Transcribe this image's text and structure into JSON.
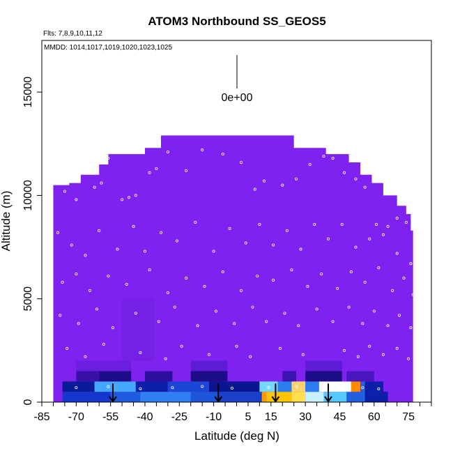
{
  "chart_data": {
    "type": "heatmap",
    "title": "ATOM3 Northbound SS_GEOS5",
    "flights_label": "Flts: 7,8,9,10,11,12",
    "mmdd_label": "MMDD: 1014,1017,1019,1020,1023,1025",
    "xlabel": "Latitude (deg N)",
    "ylabel": "Altitude (m)",
    "xlim": [
      -85,
      85
    ],
    "ylim": [
      0,
      17500
    ],
    "x_ticks": [
      "-85",
      "-70",
      "-55",
      "-40",
      "-25",
      "-10",
      "5",
      "15",
      "30",
      "45",
      "60",
      "75"
    ],
    "y_ticks": [
      "0",
      "5000",
      "10000",
      "15000"
    ],
    "colorbar_label": "0e+00",
    "background_value_color": "#7f22f0",
    "curtain_top_profile": [
      {
        "lat": -80,
        "alt": 10500
      },
      {
        "lat": -73,
        "alt": 10600
      },
      {
        "lat": -68,
        "alt": 11000
      },
      {
        "lat": -60,
        "alt": 11500
      },
      {
        "lat": -56,
        "alt": 12000
      },
      {
        "lat": -40,
        "alt": 12300
      },
      {
        "lat": -33,
        "alt": 12900
      },
      {
        "lat": 18,
        "alt": 12900
      },
      {
        "lat": 25,
        "alt": 12300
      },
      {
        "lat": 39,
        "alt": 12000
      },
      {
        "lat": 49,
        "alt": 11600
      },
      {
        "lat": 54,
        "alt": 11000
      },
      {
        "lat": 59,
        "alt": 10600
      },
      {
        "lat": 64,
        "alt": 10000
      },
      {
        "lat": 70,
        "alt": 9500
      },
      {
        "lat": 74,
        "alt": 9100
      },
      {
        "lat": 76,
        "alt": 8300
      },
      {
        "lat": 77,
        "alt": 7100
      }
    ],
    "boundary_layer_cells": [
      {
        "lat0": -76,
        "lat1": -55,
        "alt0": 0,
        "alt1": 500,
        "color": "#1536cc"
      },
      {
        "lat0": -55,
        "lat1": -42,
        "alt0": 0,
        "alt1": 500,
        "color": "#1f5be0"
      },
      {
        "lat0": -42,
        "lat1": -20,
        "alt0": 0,
        "alt1": 500,
        "color": "#2f7ff0"
      },
      {
        "lat0": -20,
        "lat1": -8,
        "alt0": 0,
        "alt1": 500,
        "color": "#1d55dd"
      },
      {
        "lat0": -8,
        "lat1": 11,
        "alt0": 0,
        "alt1": 500,
        "color": "#1a3fc8"
      },
      {
        "lat0": 11,
        "lat1": 13,
        "alt0": 0,
        "alt1": 500,
        "color": "#ff9a00"
      },
      {
        "lat0": 13,
        "lat1": 24,
        "alt0": 0,
        "alt1": 500,
        "color": "#ffc400"
      },
      {
        "lat0": 24,
        "lat1": 30,
        "alt0": 0,
        "alt1": 500,
        "color": "#ffe04a"
      },
      {
        "lat0": 30,
        "lat1": 38,
        "alt0": 0,
        "alt1": 500,
        "color": "#c9f0ff"
      },
      {
        "lat0": 38,
        "lat1": 48,
        "alt0": 0,
        "alt1": 500,
        "color": "#55c8ff"
      },
      {
        "lat0": 48,
        "lat1": 56,
        "alt0": 0,
        "alt1": 500,
        "color": "#1f5fe0"
      },
      {
        "lat0": 56,
        "lat1": 66,
        "alt0": 0,
        "alt1": 500,
        "color": "#0c1fa8"
      },
      {
        "lat0": -76,
        "lat1": -62,
        "alt0": 500,
        "alt1": 1000,
        "color": "#0a1b9a"
      },
      {
        "lat0": -62,
        "lat1": -44,
        "alt0": 500,
        "alt1": 1000,
        "color": "#43a6ff"
      },
      {
        "lat0": -44,
        "lat1": -30,
        "alt0": 500,
        "alt1": 1000,
        "color": "#0c1fa8"
      },
      {
        "lat0": -30,
        "lat1": -12,
        "alt0": 500,
        "alt1": 1000,
        "color": "#1c46d5"
      },
      {
        "lat0": -12,
        "lat1": 10,
        "alt0": 500,
        "alt1": 1000,
        "color": "#0a1590"
      },
      {
        "lat0": 10,
        "lat1": 18,
        "alt0": 500,
        "alt1": 1000,
        "color": "#74d8ff"
      },
      {
        "lat0": 18,
        "lat1": 24,
        "alt0": 500,
        "alt1": 1000,
        "color": "#2a7ef0"
      },
      {
        "lat0": 24,
        "lat1": 30,
        "alt0": 500,
        "alt1": 1000,
        "color": "#ffd36b"
      },
      {
        "lat0": 30,
        "lat1": 36,
        "alt0": 500,
        "alt1": 1000,
        "color": "#2a7ef0"
      },
      {
        "lat0": 36,
        "lat1": 50,
        "alt0": 500,
        "alt1": 1000,
        "color": "#ffffff"
      },
      {
        "lat0": 50,
        "lat1": 54,
        "alt0": 500,
        "alt1": 1000,
        "color": "#ff8a00"
      },
      {
        "lat0": 54,
        "lat1": 56,
        "alt0": 500,
        "alt1": 1000,
        "color": "#2a5de0"
      },
      {
        "lat0": 56,
        "lat1": 64,
        "alt0": 500,
        "alt1": 1000,
        "color": "#0c1fa8"
      },
      {
        "lat0": -70,
        "lat1": -60,
        "alt0": 1000,
        "alt1": 1500,
        "color": "#3a11a8"
      },
      {
        "lat0": -60,
        "lat1": -46,
        "alt0": 1000,
        "alt1": 1500,
        "color": "#1e0d8a"
      },
      {
        "lat0": -40,
        "lat1": -28,
        "alt0": 1000,
        "alt1": 1500,
        "color": "#2d0f9e"
      },
      {
        "lat0": -20,
        "lat1": -4,
        "alt0": 1000,
        "alt1": 1500,
        "color": "#1d0c88"
      },
      {
        "lat0": 20,
        "lat1": 26,
        "alt0": 1000,
        "alt1": 1500,
        "color": "#3b14b0"
      },
      {
        "lat0": 30,
        "lat1": 46,
        "alt0": 1000,
        "alt1": 1500,
        "color": "#1d0c88"
      },
      {
        "lat0": 48,
        "lat1": 60,
        "alt0": 1000,
        "alt1": 1500,
        "color": "#4a16bf"
      },
      {
        "lat0": -70,
        "lat1": -46,
        "alt0": 1500,
        "alt1": 2000,
        "color": "#6b1ee0"
      },
      {
        "lat0": -20,
        "lat1": -4,
        "alt0": 1500,
        "alt1": 2000,
        "color": "#5e1bd6"
      },
      {
        "lat0": 30,
        "lat1": 46,
        "alt0": 1500,
        "alt1": 2000,
        "color": "#5e1bd6"
      },
      {
        "lat0": -50,
        "lat1": -36,
        "alt0": 2000,
        "alt1": 5000,
        "color": "#7520e4"
      }
    ],
    "flight_track_markers_lat": [
      -54,
      -8,
      17,
      40
    ],
    "aircraft_observations": [
      {
        "lat": -75,
        "alt": 10200
      },
      {
        "lat": -70,
        "alt": 9800
      },
      {
        "lat": -62,
        "alt": 10400
      },
      {
        "lat": -59,
        "alt": 10600
      },
      {
        "lat": -56,
        "alt": 11800
      },
      {
        "lat": -50,
        "alt": 9800
      },
      {
        "lat": -47,
        "alt": 9900
      },
      {
        "lat": -44,
        "alt": 10000
      },
      {
        "lat": -38,
        "alt": 11100
      },
      {
        "lat": -35,
        "alt": 11300
      },
      {
        "lat": -30,
        "alt": 12100
      },
      {
        "lat": -22,
        "alt": 11200
      },
      {
        "lat": -15,
        "alt": 12200
      },
      {
        "lat": -6,
        "alt": 12000
      },
      {
        "lat": 2,
        "alt": 11600
      },
      {
        "lat": 8,
        "alt": 10300
      },
      {
        "lat": 12,
        "alt": 10700
      },
      {
        "lat": 20,
        "alt": 10500
      },
      {
        "lat": 26,
        "alt": 10800
      },
      {
        "lat": 32,
        "alt": 11500
      },
      {
        "lat": 38,
        "alt": 11900
      },
      {
        "lat": 42,
        "alt": 11800
      },
      {
        "lat": 47,
        "alt": 11100
      },
      {
        "lat": 52,
        "alt": 10800
      },
      {
        "lat": 56,
        "alt": 10400
      },
      {
        "lat": 61,
        "alt": 8600
      },
      {
        "lat": 66,
        "alt": 8500
      },
      {
        "lat": 70,
        "alt": 8900
      },
      {
        "lat": 74,
        "alt": 8700
      },
      {
        "lat": -78,
        "alt": 8200
      },
      {
        "lat": -72,
        "alt": 7600
      },
      {
        "lat": -66,
        "alt": 7100
      },
      {
        "lat": -60,
        "alt": 8300
      },
      {
        "lat": -52,
        "alt": 7400
      },
      {
        "lat": -45,
        "alt": 8500
      },
      {
        "lat": -40,
        "alt": 7300
      },
      {
        "lat": -33,
        "alt": 8200
      },
      {
        "lat": -26,
        "alt": 7800
      },
      {
        "lat": -18,
        "alt": 8700
      },
      {
        "lat": -10,
        "alt": 7300
      },
      {
        "lat": -3,
        "alt": 8400
      },
      {
        "lat": 4,
        "alt": 7700
      },
      {
        "lat": 10,
        "alt": 8600
      },
      {
        "lat": 16,
        "alt": 7600
      },
      {
        "lat": 22,
        "alt": 8300
      },
      {
        "lat": 28,
        "alt": 7400
      },
      {
        "lat": 34,
        "alt": 8600
      },
      {
        "lat": 40,
        "alt": 7900
      },
      {
        "lat": 46,
        "alt": 8600
      },
      {
        "lat": 52,
        "alt": 7500
      },
      {
        "lat": 58,
        "alt": 7900
      },
      {
        "lat": 64,
        "alt": 8100
      },
      {
        "lat": 70,
        "alt": 7200
      },
      {
        "lat": 76,
        "alt": 6700
      },
      {
        "lat": -76,
        "alt": 5800
      },
      {
        "lat": -70,
        "alt": 6200
      },
      {
        "lat": -64,
        "alt": 5400
      },
      {
        "lat": -56,
        "alt": 6100
      },
      {
        "lat": -48,
        "alt": 5700
      },
      {
        "lat": -38,
        "alt": 6400
      },
      {
        "lat": -30,
        "alt": 5300
      },
      {
        "lat": -22,
        "alt": 6000
      },
      {
        "lat": -14,
        "alt": 5600
      },
      {
        "lat": -6,
        "alt": 6300
      },
      {
        "lat": 2,
        "alt": 5400
      },
      {
        "lat": 9,
        "alt": 6100
      },
      {
        "lat": 16,
        "alt": 5900
      },
      {
        "lat": 24,
        "alt": 6400
      },
      {
        "lat": 31,
        "alt": 5600
      },
      {
        "lat": 37,
        "alt": 6200
      },
      {
        "lat": 44,
        "alt": 5500
      },
      {
        "lat": 50,
        "alt": 6300
      },
      {
        "lat": 56,
        "alt": 5800
      },
      {
        "lat": 62,
        "alt": 6500
      },
      {
        "lat": 68,
        "alt": 5400
      },
      {
        "lat": 73,
        "alt": 6000
      },
      {
        "lat": 77,
        "alt": 5200
      },
      {
        "lat": -77,
        "alt": 4200
      },
      {
        "lat": -69,
        "alt": 3800
      },
      {
        "lat": -61,
        "alt": 4500
      },
      {
        "lat": -54,
        "alt": 3600
      },
      {
        "lat": -44,
        "alt": 4300
      },
      {
        "lat": -34,
        "alt": 3900
      },
      {
        "lat": -27,
        "alt": 4600
      },
      {
        "lat": -17,
        "alt": 3700
      },
      {
        "lat": -9,
        "alt": 4400
      },
      {
        "lat": -1,
        "alt": 3800
      },
      {
        "lat": 7,
        "alt": 4600
      },
      {
        "lat": 13,
        "alt": 3900
      },
      {
        "lat": 21,
        "alt": 4300
      },
      {
        "lat": 27,
        "alt": 3700
      },
      {
        "lat": 35,
        "alt": 4500
      },
      {
        "lat": 42,
        "alt": 3900
      },
      {
        "lat": 49,
        "alt": 4600
      },
      {
        "lat": 55,
        "alt": 3800
      },
      {
        "lat": 60,
        "alt": 4400
      },
      {
        "lat": 66,
        "alt": 3700
      },
      {
        "lat": 71,
        "alt": 4200
      },
      {
        "lat": 76,
        "alt": 3600
      },
      {
        "lat": -74,
        "alt": 2600
      },
      {
        "lat": -66,
        "alt": 2200
      },
      {
        "lat": -58,
        "alt": 2800
      },
      {
        "lat": -42,
        "alt": 2400
      },
      {
        "lat": -31,
        "alt": 2100
      },
      {
        "lat": -24,
        "alt": 2700
      },
      {
        "lat": -12,
        "alt": 2300
      },
      {
        "lat": 0,
        "alt": 2700
      },
      {
        "lat": 6,
        "alt": 2200
      },
      {
        "lat": 19,
        "alt": 2600
      },
      {
        "lat": 29,
        "alt": 2300
      },
      {
        "lat": 47,
        "alt": 2500
      },
      {
        "lat": 53,
        "alt": 2200
      },
      {
        "lat": 58,
        "alt": 2700
      },
      {
        "lat": 64,
        "alt": 2300
      },
      {
        "lat": 70,
        "alt": 2600
      },
      {
        "lat": 75,
        "alt": 2100
      },
      {
        "lat": -70,
        "alt": 700
      },
      {
        "lat": -56,
        "alt": 750
      },
      {
        "lat": -42,
        "alt": 650
      },
      {
        "lat": -28,
        "alt": 700
      },
      {
        "lat": -15,
        "alt": 760
      },
      {
        "lat": -2,
        "alt": 680
      },
      {
        "lat": 14,
        "alt": 700
      },
      {
        "lat": 26,
        "alt": 760
      },
      {
        "lat": 41,
        "alt": 680
      },
      {
        "lat": 55,
        "alt": 700
      },
      {
        "lat": 62,
        "alt": 640
      }
    ]
  }
}
